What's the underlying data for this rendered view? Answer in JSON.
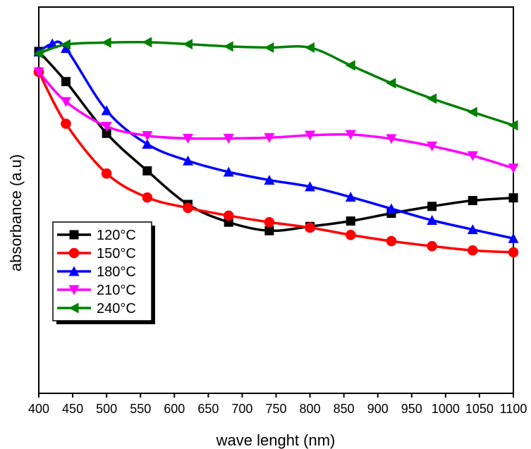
{
  "chart_data": {
    "type": "line",
    "title": "",
    "xlabel": "wave lenght (nm)",
    "ylabel": "absorbance (a.u)",
    "xlim": [
      400,
      1100
    ],
    "ylim": [
      0,
      1
    ],
    "x_ticks": [
      400,
      450,
      500,
      550,
      600,
      650,
      700,
      750,
      800,
      850,
      900,
      950,
      1000,
      1050,
      1100
    ],
    "y_ticks_shown": false,
    "grid": false,
    "legend_position": "lower-left",
    "series": [
      {
        "name": "120°C",
        "color": "#000000",
        "marker": "square",
        "x": [
          400,
          440,
          500,
          560,
          620,
          680,
          740,
          800,
          860,
          920,
          980,
          1040,
          1100
        ],
        "y": [
          0.885,
          0.807,
          0.673,
          0.576,
          0.489,
          0.443,
          0.421,
          0.432,
          0.446,
          0.466,
          0.484,
          0.499,
          0.506
        ]
      },
      {
        "name": "150°C",
        "color": "#ff0000",
        "marker": "circle",
        "x": [
          400,
          440,
          500,
          560,
          620,
          680,
          740,
          800,
          860,
          920,
          980,
          1040,
          1100
        ],
        "y": [
          0.832,
          0.698,
          0.569,
          0.507,
          0.48,
          0.46,
          0.443,
          0.429,
          0.41,
          0.394,
          0.381,
          0.37,
          0.365
        ]
      },
      {
        "name": "180°C",
        "color": "#0000ff",
        "marker": "triangle-up",
        "x": [
          400,
          420,
          440,
          500,
          560,
          620,
          680,
          740,
          800,
          860,
          920,
          980,
          1040,
          1100
        ],
        "y": [
          0.884,
          0.905,
          0.893,
          0.732,
          0.645,
          0.602,
          0.573,
          0.552,
          0.535,
          0.508,
          0.478,
          0.448,
          0.424,
          0.401
        ]
      },
      {
        "name": "210°C",
        "color": "#ff00ff",
        "marker": "triangle-down",
        "x": [
          400,
          440,
          500,
          560,
          620,
          680,
          740,
          800,
          860,
          920,
          980,
          1040,
          1100
        ],
        "y": [
          0.832,
          0.755,
          0.691,
          0.667,
          0.66,
          0.66,
          0.662,
          0.668,
          0.67,
          0.659,
          0.64,
          0.615,
          0.583
        ]
      },
      {
        "name": "240°C",
        "color": "#008000",
        "marker": "triangle-left",
        "x": [
          400,
          440,
          500,
          560,
          620,
          680,
          740,
          800,
          860,
          920,
          980,
          1040,
          1100
        ],
        "y": [
          0.88,
          0.903,
          0.908,
          0.909,
          0.904,
          0.898,
          0.895,
          0.895,
          0.849,
          0.803,
          0.763,
          0.728,
          0.694
        ]
      }
    ]
  }
}
